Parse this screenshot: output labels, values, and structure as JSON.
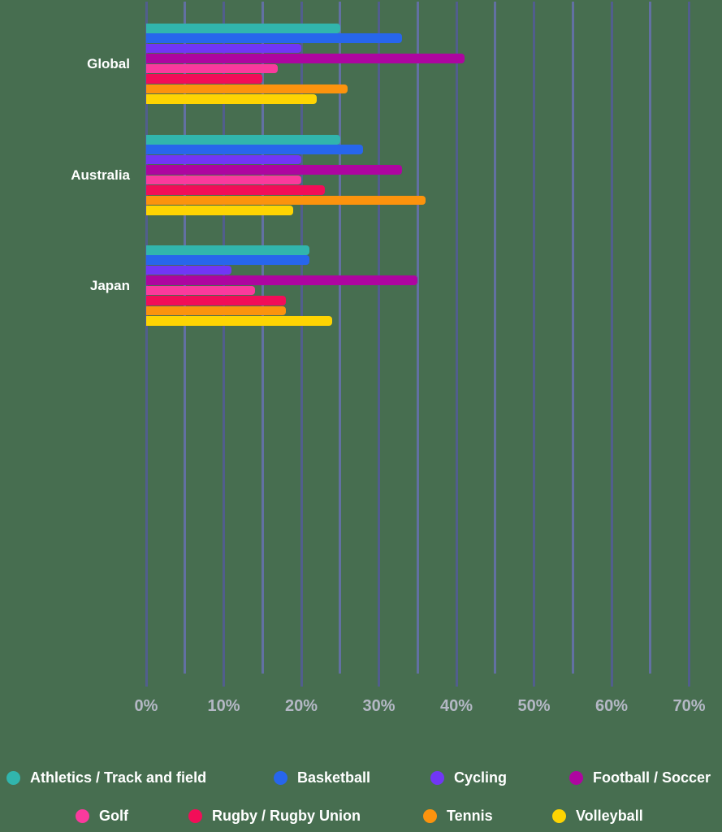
{
  "background_color": "#476e50",
  "axis": {
    "tick_labels": [
      "0%",
      "10%",
      "20%",
      "30%",
      "40%",
      "50%",
      "60%",
      "70%"
    ],
    "min": 0,
    "max": 70,
    "major_step": 10,
    "minor_step": 5,
    "unit": "%",
    "grid_major_color": "#515e8d",
    "grid_minor_color": "#6270a2",
    "tick_label_color": "#b4b8c5"
  },
  "chart_data": {
    "type": "bar",
    "orientation": "horizontal",
    "unit": "%",
    "grid": true,
    "xlim": [
      0,
      70
    ],
    "legend_position": "bottom",
    "category_label_color": "#ffffff",
    "categories": [
      "Global",
      "Australia",
      "Japan"
    ],
    "series": [
      {
        "name": "Athletics / Track and field",
        "color": "#31b5ad",
        "values": [
          25,
          25,
          21
        ]
      },
      {
        "name": "Basketball",
        "color": "#2766ec",
        "values": [
          33,
          28,
          21
        ]
      },
      {
        "name": "Cycling",
        "color": "#7136f6",
        "values": [
          20,
          20,
          11
        ]
      },
      {
        "name": "Football / Soccer",
        "color": "#ae05a0",
        "values": [
          41,
          33,
          35
        ]
      },
      {
        "name": "Golf",
        "color": "#fa3a9d",
        "values": [
          17,
          20,
          14
        ]
      },
      {
        "name": "Rugby / Rugby Union",
        "color": "#f20d58",
        "values": [
          15,
          23,
          18
        ]
      },
      {
        "name": "Tennis",
        "color": "#fc930d",
        "values": [
          26,
          36,
          18
        ]
      },
      {
        "name": "Volleyball",
        "color": "#fed402",
        "values": [
          22,
          19,
          24
        ]
      }
    ]
  },
  "legend": {
    "text_color": "#ffffff",
    "rows": [
      [
        "Athletics / Track and field",
        "Basketball",
        "Cycling",
        "Football / Soccer"
      ],
      [
        "Golf",
        "Rugby / Rugby Union",
        "Tennis",
        "Volleyball"
      ]
    ]
  }
}
